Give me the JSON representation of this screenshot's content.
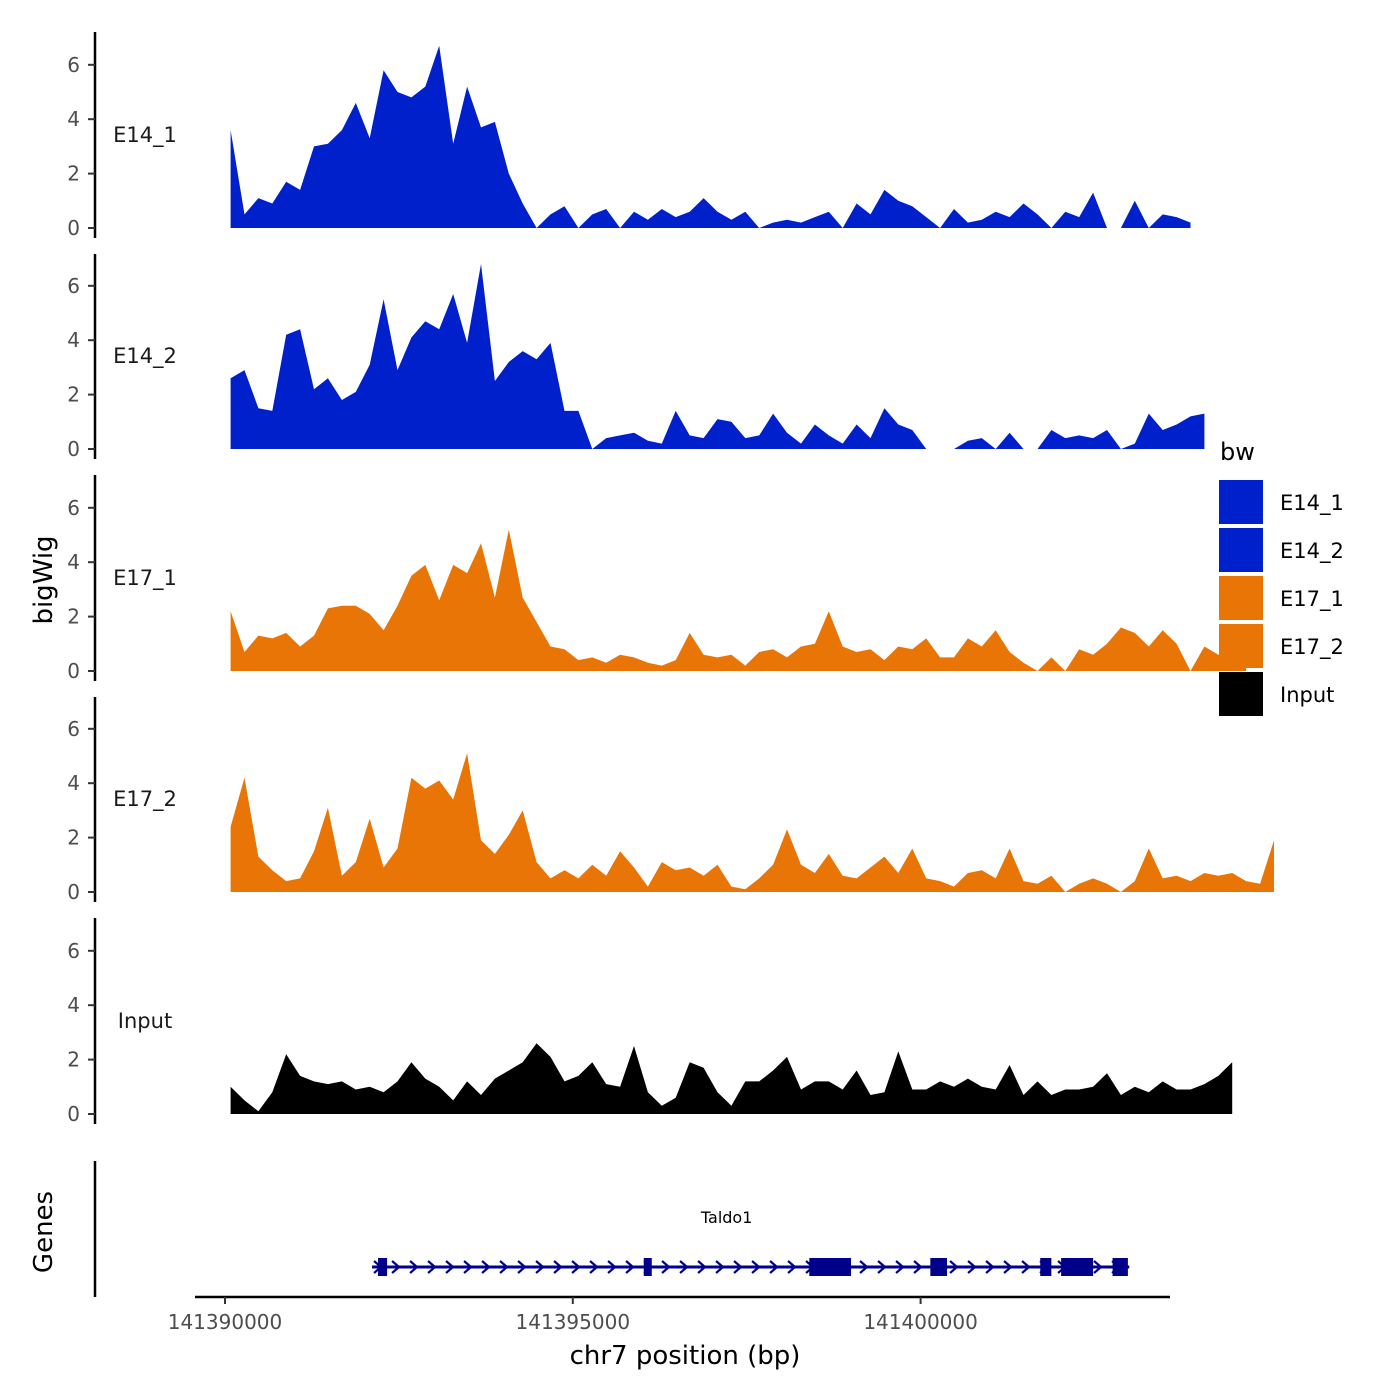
{
  "chart_data": {
    "type": "area",
    "title": "",
    "ylabel": "bigWig",
    "xlabel": "chr7 position (bp)",
    "genes_label": "Genes",
    "x_range": [
      141390000,
      141403000
    ],
    "x_ticks": [
      141390000,
      141395000,
      141400000
    ],
    "x_tick_labels": [
      "141390000",
      "141395000",
      "141400000"
    ],
    "ylim": [
      0,
      7.2
    ],
    "y_ticks": [
      0,
      2,
      4,
      6
    ],
    "y_tick_labels": [
      "0",
      "2",
      "4",
      "6"
    ],
    "x_start": 141390080,
    "x_step": 200,
    "series": [
      {
        "name": "E14_1",
        "color": "#0020CC",
        "values": [
          3.6,
          0.5,
          1.1,
          0.9,
          1.7,
          1.4,
          3.0,
          3.1,
          3.6,
          4.6,
          3.3,
          5.8,
          5.0,
          4.8,
          5.2,
          6.7,
          3.1,
          5.2,
          3.7,
          3.9,
          2.0,
          0.9,
          0,
          0.5,
          0.8,
          0,
          0.5,
          0.7,
          0,
          0.6,
          0.3,
          0.7,
          0.4,
          0.6,
          1.1,
          0.6,
          0.3,
          0.6,
          0,
          0.2,
          0.3,
          0.2,
          0.4,
          0.6,
          0,
          0.9,
          0.5,
          1.4,
          1.0,
          0.8,
          0.4,
          0,
          0.7,
          0.2,
          0.3,
          0.6,
          0.4,
          0.9,
          0.5,
          0,
          0.6,
          0.4,
          1.3,
          0,
          0,
          1.0,
          0,
          0.5,
          0.4,
          0.2
        ]
      },
      {
        "name": "E14_2",
        "color": "#0020CC",
        "values": [
          2.6,
          2.9,
          1.5,
          1.4,
          4.2,
          4.4,
          2.2,
          2.6,
          1.8,
          2.1,
          3.1,
          5.5,
          2.9,
          4.1,
          4.7,
          4.4,
          5.7,
          3.9,
          6.8,
          2.5,
          3.2,
          3.6,
          3.3,
          3.9,
          1.4,
          1.4,
          0,
          0.4,
          0.5,
          0.6,
          0.3,
          0.2,
          1.4,
          0.5,
          0.4,
          1.1,
          1.0,
          0.4,
          0.5,
          1.3,
          0.6,
          0.2,
          0.9,
          0.5,
          0.2,
          0.9,
          0.4,
          1.5,
          0.9,
          0.7,
          0,
          0,
          0,
          0.3,
          0.4,
          0,
          0.6,
          0,
          0,
          0.7,
          0.4,
          0.5,
          0.4,
          0.7,
          0,
          0.2,
          1.3,
          0.7,
          0.9,
          1.2,
          1.3
        ]
      },
      {
        "name": "E17_1",
        "color": "#E87505",
        "values": [
          2.2,
          0.7,
          1.3,
          1.2,
          1.4,
          0.9,
          1.3,
          2.3,
          2.4,
          2.4,
          2.1,
          1.5,
          2.4,
          3.5,
          3.9,
          2.6,
          3.9,
          3.6,
          4.7,
          2.7,
          5.2,
          2.7,
          1.8,
          0.9,
          0.8,
          0.4,
          0.5,
          0.3,
          0.6,
          0.5,
          0.3,
          0.2,
          0.4,
          1.4,
          0.6,
          0.5,
          0.6,
          0.2,
          0.7,
          0.8,
          0.5,
          0.9,
          1.0,
          2.2,
          0.9,
          0.7,
          0.8,
          0.4,
          0.9,
          0.8,
          1.2,
          0.5,
          0.5,
          1.2,
          0.9,
          1.5,
          0.7,
          0.3,
          0,
          0.5,
          0,
          0.8,
          0.6,
          1.0,
          1.6,
          1.4,
          0.9,
          1.5,
          1.0,
          0,
          0.9,
          0.6,
          0.8,
          0.4
        ]
      },
      {
        "name": "E17_2",
        "color": "#E87505",
        "values": [
          2.4,
          4.2,
          1.3,
          0.8,
          0.4,
          0.5,
          1.5,
          3.1,
          0.6,
          1.1,
          2.7,
          0.9,
          1.6,
          4.2,
          3.8,
          4.1,
          3.4,
          5.1,
          1.9,
          1.4,
          2.1,
          3.0,
          1.1,
          0.5,
          0.8,
          0.5,
          1.0,
          0.6,
          1.5,
          0.9,
          0.2,
          1.1,
          0.8,
          0.9,
          0.6,
          1.0,
          0.2,
          0.1,
          0.5,
          1.0,
          2.3,
          1.0,
          0.7,
          1.4,
          0.6,
          0.5,
          0.9,
          1.3,
          0.7,
          1.6,
          0.5,
          0.4,
          0.2,
          0.7,
          0.8,
          0.5,
          1.6,
          0.4,
          0.3,
          0.6,
          0,
          0.3,
          0.5,
          0.3,
          0,
          0.4,
          1.6,
          0.5,
          0.6,
          0.4,
          0.7,
          0.6,
          0.7,
          0.4,
          0.3,
          1.9
        ]
      },
      {
        "name": "Input",
        "color": "#000000",
        "values": [
          1.0,
          0.5,
          0.1,
          0.8,
          2.2,
          1.4,
          1.2,
          1.1,
          1.2,
          0.9,
          1.0,
          0.8,
          1.2,
          1.9,
          1.3,
          1.0,
          0.5,
          1.2,
          0.7,
          1.3,
          1.6,
          1.9,
          2.6,
          2.1,
          1.2,
          1.4,
          1.9,
          1.1,
          1.0,
          2.5,
          0.8,
          0.3,
          0.6,
          1.9,
          1.7,
          0.8,
          0.3,
          1.2,
          1.2,
          1.6,
          2.1,
          0.9,
          1.2,
          1.2,
          0.9,
          1.6,
          0.7,
          0.8,
          2.3,
          0.9,
          0.9,
          1.2,
          1.0,
          1.3,
          1.0,
          0.9,
          1.8,
          0.7,
          1.2,
          0.7,
          0.9,
          0.9,
          1.0,
          1.5,
          0.7,
          1.0,
          0.8,
          1.2,
          0.9,
          0.9,
          1.1,
          1.4,
          1.9
        ]
      }
    ],
    "legend_title": "bw",
    "legend": [
      {
        "label": "E14_1",
        "color": "#0020CC"
      },
      {
        "label": "E14_2",
        "color": "#0020CC"
      },
      {
        "label": "E17_1",
        "color": "#E87505"
      },
      {
        "label": "E17_2",
        "color": "#E87505"
      },
      {
        "label": "Input",
        "color": "#000000"
      }
    ],
    "gene": {
      "name": "Taldo1",
      "color": "#00008B",
      "strand": "+",
      "start": 141392200,
      "end": 141403000,
      "exons": [
        [
          141392200,
          141392330
        ],
        [
          141396020,
          141396130
        ],
        [
          141398400,
          141399000
        ],
        [
          141400140,
          141400380
        ],
        [
          141401720,
          141401880
        ],
        [
          141402020,
          141402480
        ],
        [
          141402760,
          141402980
        ]
      ]
    }
  }
}
